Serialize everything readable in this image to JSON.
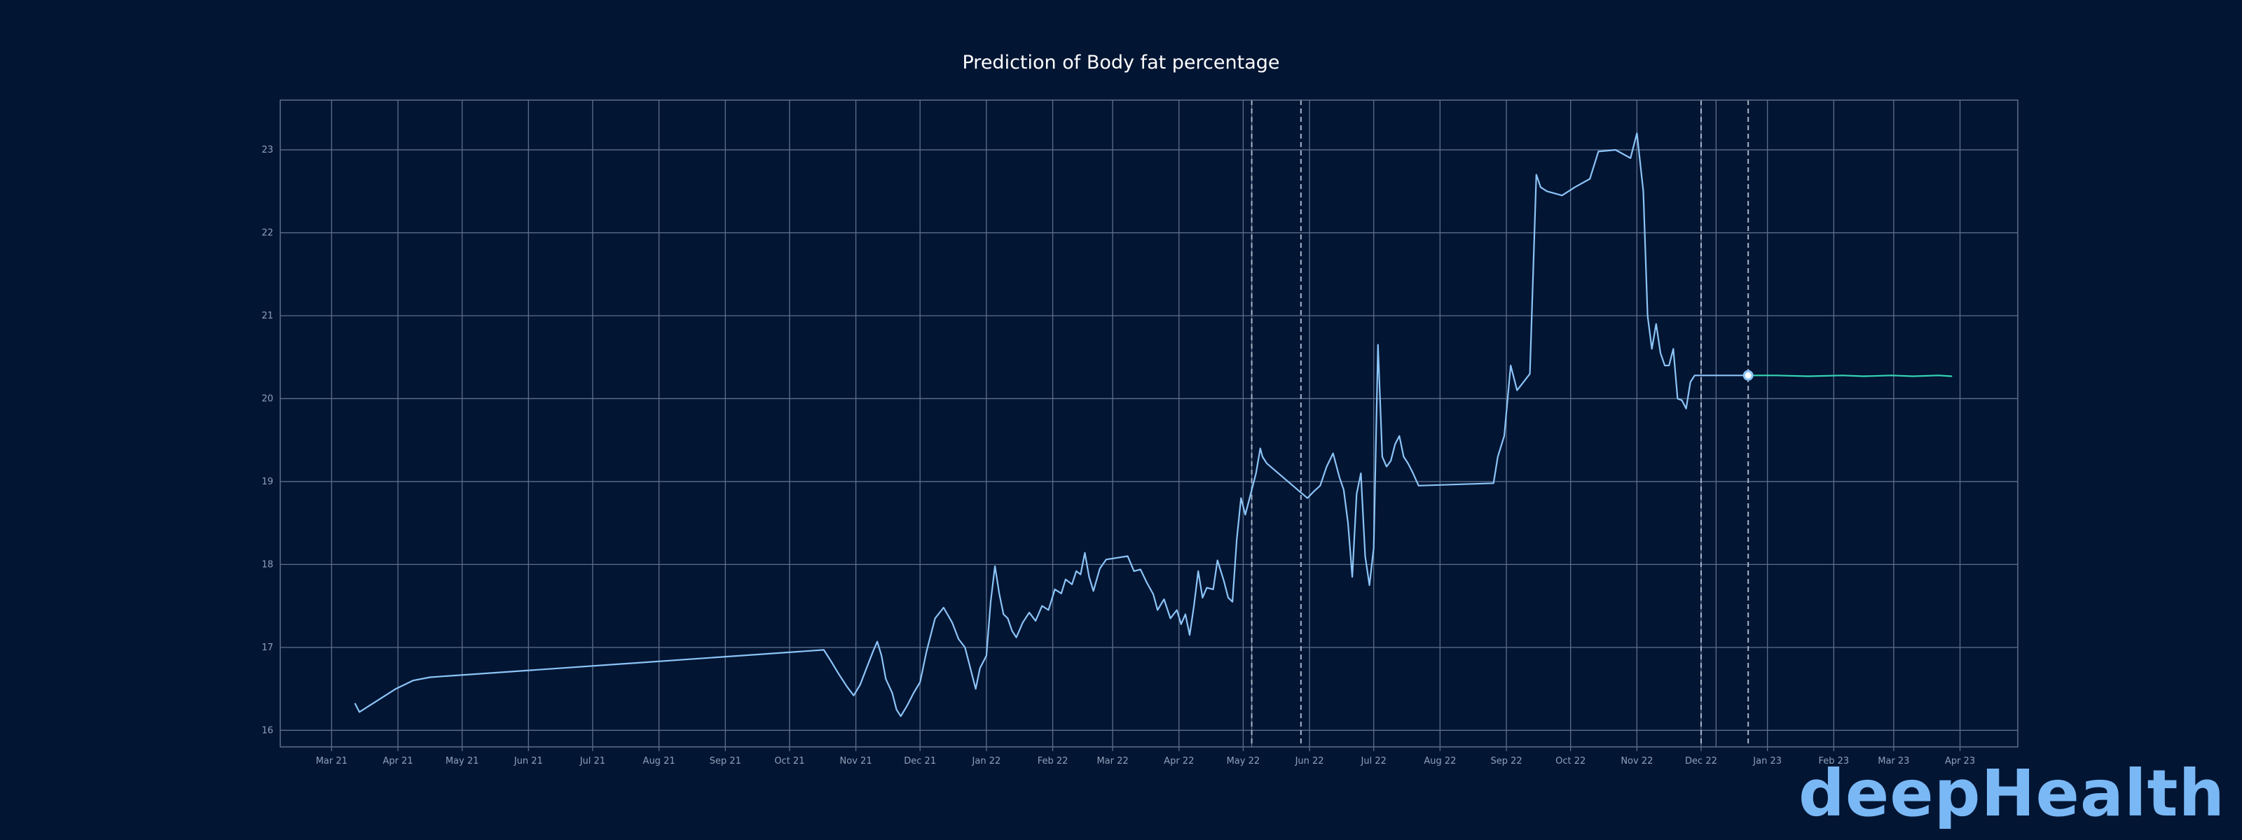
{
  "brand": {
    "logo_text": "deepHealth"
  },
  "colors": {
    "background": "#021533",
    "grid": "#5d6f8b",
    "history_line": "#8cc4f7",
    "forecast_line": "#36d6b5",
    "marker_vline": "#a9b6c8"
  },
  "chart_data": {
    "type": "line",
    "title": "Prediction of Body fat percentage",
    "xlabel": "",
    "ylabel": "",
    "x_tick_labels": [
      "Mar 21",
      "Apr 21",
      "May 21",
      "Jun 21",
      "Jul 21",
      "Aug 21",
      "Sep 21",
      "Oct 21",
      "Nov 21",
      "Dec 21",
      "Jan 22",
      "Feb 22",
      "Mar 22",
      "Apr 22",
      "May 22",
      "Jun 22",
      "Jul 22",
      "Aug 22",
      "Sep 22",
      "Oct 22",
      "Nov 22",
      "Dec 22",
      "Jan 23",
      "Feb 23",
      "Mar 23",
      "Apr 23"
    ],
    "x_tick_dates": [
      "2021-03-01",
      "2021-04-01",
      "2021-05-01",
      "2021-06-01",
      "2021-07-01",
      "2021-08-01",
      "2021-09-01",
      "2021-10-01",
      "2021-11-01",
      "2021-12-01",
      "2022-01-01",
      "2022-02-01",
      "2022-03-01",
      "2022-04-01",
      "2022-05-01",
      "2022-06-01",
      "2022-07-01",
      "2022-08-01",
      "2022-09-01",
      "2022-10-01",
      "2022-11-01",
      "2022-12-01",
      "2023-01-01",
      "2023-02-01",
      "2023-03-01",
      "2023-04-01"
    ],
    "extra_x_gridlines": [
      "2022-05-05",
      "2022-12-08"
    ],
    "y_ticks": [
      16,
      17,
      18,
      19,
      20,
      21,
      22,
      23
    ],
    "xlim": [
      "2021-02-05",
      "2023-04-28"
    ],
    "ylim": [
      15.8,
      23.6
    ],
    "grid": true,
    "legend": "none",
    "vertical_markers": [
      "2022-05-05",
      "2022-05-28",
      "2022-12-01",
      "2022-12-23"
    ],
    "series": [
      {
        "role": "history",
        "points": [
          [
            "2021-03-12",
            16.32
          ],
          [
            "2021-03-14",
            16.22
          ],
          [
            "2021-03-31",
            16.5
          ],
          [
            "2021-04-08",
            16.6
          ],
          [
            "2021-04-16",
            16.64
          ],
          [
            "2021-10-17",
            16.97
          ],
          [
            "2021-10-20",
            16.85
          ],
          [
            "2021-10-24",
            16.68
          ],
          [
            "2021-10-28",
            16.52
          ],
          [
            "2021-10-31",
            16.42
          ],
          [
            "2021-11-03",
            16.55
          ],
          [
            "2021-11-06",
            16.75
          ],
          [
            "2021-11-09",
            16.95
          ],
          [
            "2021-11-11",
            17.07
          ],
          [
            "2021-11-13",
            16.9
          ],
          [
            "2021-11-15",
            16.62
          ],
          [
            "2021-11-18",
            16.45
          ],
          [
            "2021-11-20",
            16.25
          ],
          [
            "2021-11-22",
            16.17
          ],
          [
            "2021-11-25",
            16.3
          ],
          [
            "2021-11-28",
            16.45
          ],
          [
            "2021-12-01",
            16.58
          ],
          [
            "2021-12-04",
            16.95
          ],
          [
            "2021-12-08",
            17.35
          ],
          [
            "2021-12-12",
            17.48
          ],
          [
            "2021-12-16",
            17.3
          ],
          [
            "2021-12-19",
            17.1
          ],
          [
            "2021-12-22",
            17.0
          ],
          [
            "2021-12-25",
            16.7
          ],
          [
            "2021-12-27",
            16.5
          ],
          [
            "2021-12-29",
            16.75
          ],
          [
            "2022-01-01",
            16.9
          ],
          [
            "2022-01-03",
            17.55
          ],
          [
            "2022-01-05",
            17.98
          ],
          [
            "2022-01-07",
            17.65
          ],
          [
            "2022-01-09",
            17.4
          ],
          [
            "2022-01-11",
            17.35
          ],
          [
            "2022-01-13",
            17.2
          ],
          [
            "2022-01-15",
            17.12
          ],
          [
            "2022-01-18",
            17.3
          ],
          [
            "2022-01-21",
            17.42
          ],
          [
            "2022-01-24",
            17.32
          ],
          [
            "2022-01-27",
            17.5
          ],
          [
            "2022-01-30",
            17.45
          ],
          [
            "2022-02-02",
            17.7
          ],
          [
            "2022-02-05",
            17.65
          ],
          [
            "2022-02-07",
            17.82
          ],
          [
            "2022-02-10",
            17.76
          ],
          [
            "2022-02-12",
            17.92
          ],
          [
            "2022-02-14",
            17.88
          ],
          [
            "2022-02-16",
            18.14
          ],
          [
            "2022-02-18",
            17.85
          ],
          [
            "2022-02-20",
            17.68
          ],
          [
            "2022-02-23",
            17.95
          ],
          [
            "2022-02-26",
            18.06
          ],
          [
            "2022-03-08",
            18.1
          ],
          [
            "2022-03-11",
            17.92
          ],
          [
            "2022-03-14",
            17.94
          ],
          [
            "2022-03-17",
            17.78
          ],
          [
            "2022-03-20",
            17.64
          ],
          [
            "2022-03-22",
            17.45
          ],
          [
            "2022-03-25",
            17.58
          ],
          [
            "2022-03-28",
            17.35
          ],
          [
            "2022-03-31",
            17.45
          ],
          [
            "2022-04-02",
            17.28
          ],
          [
            "2022-04-04",
            17.4
          ],
          [
            "2022-04-06",
            17.15
          ],
          [
            "2022-04-08",
            17.5
          ],
          [
            "2022-04-10",
            17.92
          ],
          [
            "2022-04-12",
            17.6
          ],
          [
            "2022-04-14",
            17.72
          ],
          [
            "2022-04-17",
            17.7
          ],
          [
            "2022-04-19",
            18.05
          ],
          [
            "2022-04-22",
            17.8
          ],
          [
            "2022-04-24",
            17.6
          ],
          [
            "2022-04-26",
            17.55
          ],
          [
            "2022-04-28",
            18.3
          ],
          [
            "2022-04-30",
            18.8
          ],
          [
            "2022-05-02",
            18.6
          ],
          [
            "2022-05-05",
            18.9
          ],
          [
            "2022-05-07",
            19.1
          ],
          [
            "2022-05-09",
            19.4
          ],
          [
            "2022-05-10",
            19.3
          ],
          [
            "2022-05-12",
            19.22
          ],
          [
            "2022-05-31",
            18.8
          ],
          [
            "2022-06-03",
            18.88
          ],
          [
            "2022-06-06",
            18.95
          ],
          [
            "2022-06-09",
            19.18
          ],
          [
            "2022-06-12",
            19.34
          ],
          [
            "2022-06-15",
            19.05
          ],
          [
            "2022-06-17",
            18.9
          ],
          [
            "2022-06-19",
            18.5
          ],
          [
            "2022-06-21",
            17.85
          ],
          [
            "2022-06-23",
            18.85
          ],
          [
            "2022-06-25",
            19.1
          ],
          [
            "2022-06-27",
            18.1
          ],
          [
            "2022-06-29",
            17.75
          ],
          [
            "2022-07-01",
            18.2
          ],
          [
            "2022-07-03",
            20.65
          ],
          [
            "2022-07-05",
            19.3
          ],
          [
            "2022-07-07",
            19.18
          ],
          [
            "2022-07-09",
            19.25
          ],
          [
            "2022-07-11",
            19.45
          ],
          [
            "2022-07-13",
            19.55
          ],
          [
            "2022-07-15",
            19.3
          ],
          [
            "2022-07-17",
            19.22
          ],
          [
            "2022-07-19",
            19.12
          ],
          [
            "2022-07-22",
            18.95
          ],
          [
            "2022-08-26",
            18.98
          ],
          [
            "2022-08-28",
            19.3
          ],
          [
            "2022-08-31",
            19.55
          ],
          [
            "2022-09-03",
            20.4
          ],
          [
            "2022-09-06",
            20.1
          ],
          [
            "2022-09-09",
            20.2
          ],
          [
            "2022-09-12",
            20.3
          ],
          [
            "2022-09-15",
            22.7
          ],
          [
            "2022-09-17",
            22.55
          ],
          [
            "2022-09-20",
            22.5
          ],
          [
            "2022-09-27",
            22.45
          ],
          [
            "2022-10-03",
            22.55
          ],
          [
            "2022-10-10",
            22.65
          ],
          [
            "2022-10-14",
            22.98
          ],
          [
            "2022-10-22",
            23.0
          ],
          [
            "2022-10-29",
            22.9
          ],
          [
            "2022-11-01",
            23.2
          ],
          [
            "2022-11-04",
            22.5
          ],
          [
            "2022-11-06",
            21.0
          ],
          [
            "2022-11-08",
            20.6
          ],
          [
            "2022-11-10",
            20.9
          ],
          [
            "2022-11-12",
            20.55
          ],
          [
            "2022-11-14",
            20.4
          ],
          [
            "2022-11-16",
            20.4
          ],
          [
            "2022-11-18",
            20.6
          ],
          [
            "2022-11-20",
            20.0
          ],
          [
            "2022-11-22",
            19.98
          ],
          [
            "2022-11-24",
            19.88
          ],
          [
            "2022-11-26",
            20.2
          ],
          [
            "2022-11-28",
            20.28
          ],
          [
            "2022-12-23",
            20.28
          ]
        ]
      },
      {
        "role": "forecast",
        "points": [
          [
            "2022-12-23",
            20.28
          ],
          [
            "2023-01-05",
            20.28
          ],
          [
            "2023-01-20",
            20.27
          ],
          [
            "2023-02-05",
            20.28
          ],
          [
            "2023-02-15",
            20.27
          ],
          [
            "2023-02-28",
            20.28
          ],
          [
            "2023-03-10",
            20.27
          ],
          [
            "2023-03-22",
            20.28
          ],
          [
            "2023-03-28",
            20.27
          ]
        ]
      }
    ],
    "highlight_point": [
      "2022-12-23",
      20.28
    ]
  }
}
